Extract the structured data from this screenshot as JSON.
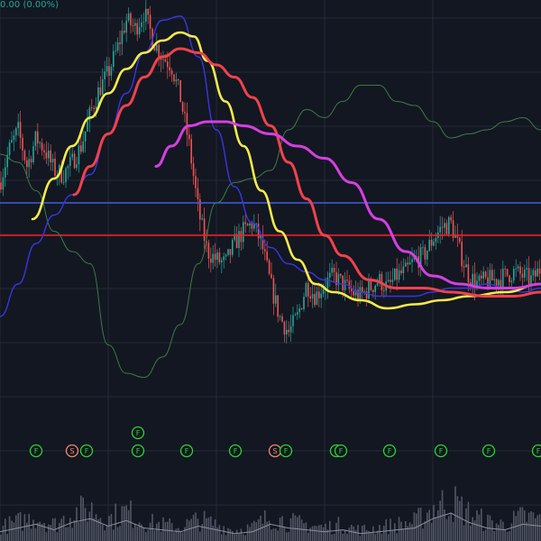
{
  "header": {
    "change_readout": "0.00 (0.00%)"
  },
  "colors": {
    "background": "#131722",
    "grid": "#242a38",
    "candle_up": "#26a69a",
    "candle_down": "#ef5350",
    "ma_fast_green": "#3d7a45",
    "ma_blue": "#3a36e0",
    "ma_yellow": "#f5eb4a",
    "ma_red": "#f0424b",
    "ma_magenta": "#d63fe0",
    "level_blue": "#3f5fe0",
    "level_red": "#ff1a1a",
    "marker_f": "#2bd52b",
    "marker_s": "#f4876b",
    "volume": "#5c6270"
  },
  "chart_data": {
    "type": "candlestick",
    "grid": true,
    "series": [
      {
        "name": "",
        "kind": "moving-average",
        "color": "#3d7a45",
        "x": [
          0,
          20,
          40,
          60,
          80,
          100,
          120,
          140,
          160,
          180,
          200,
          220,
          240,
          260,
          280,
          300,
          320,
          340,
          360,
          380,
          400,
          420,
          440,
          460,
          480,
          500,
          520,
          540,
          560,
          580,
          600
        ],
        "y": [
          0.62,
          0.6,
          0.53,
          0.43,
          0.38,
          0.35,
          0.15,
          0.08,
          0.07,
          0.12,
          0.2,
          0.35,
          0.5,
          0.55,
          0.56,
          0.58,
          0.68,
          0.73,
          0.71,
          0.75,
          0.79,
          0.79,
          0.75,
          0.74,
          0.7,
          0.66,
          0.67,
          0.68,
          0.7,
          0.71,
          0.68
        ]
      },
      {
        "name": "",
        "kind": "moving-average",
        "color": "#3a36e0",
        "x": [
          0,
          20,
          40,
          60,
          80,
          100,
          120,
          140,
          160,
          180,
          200,
          220,
          240,
          260,
          280,
          300,
          320,
          340,
          360,
          380,
          400,
          420,
          440,
          460,
          480,
          500,
          520,
          540,
          560,
          580,
          600
        ],
        "y": [
          0.22,
          0.3,
          0.4,
          0.47,
          0.52,
          0.57,
          0.67,
          0.77,
          0.87,
          0.95,
          0.96,
          0.86,
          0.68,
          0.54,
          0.45,
          0.39,
          0.35,
          0.33,
          0.31,
          0.3,
          0.28,
          0.27,
          0.27,
          0.27,
          0.28,
          0.29,
          0.29,
          0.3,
          0.29,
          0.28,
          0.29
        ]
      },
      {
        "name": "",
        "kind": "moving-average",
        "color": "#f5eb4a",
        "x": [
          36,
          60,
          80,
          100,
          120,
          140,
          160,
          180,
          200,
          215,
          230,
          250,
          270,
          290,
          310,
          330,
          350,
          370,
          400,
          430,
          460,
          490,
          520,
          560,
          600
        ],
        "y": [
          0.46,
          0.56,
          0.64,
          0.71,
          0.77,
          0.83,
          0.87,
          0.9,
          0.92,
          0.91,
          0.85,
          0.75,
          0.64,
          0.53,
          0.43,
          0.36,
          0.3,
          0.28,
          0.26,
          0.24,
          0.25,
          0.26,
          0.27,
          0.28,
          0.3
        ]
      },
      {
        "name": "",
        "kind": "moving-average",
        "color": "#f0424b",
        "x": [
          82,
          100,
          120,
          140,
          160,
          180,
          200,
          220,
          240,
          260,
          280,
          300,
          320,
          340,
          360,
          380,
          410,
          440,
          470,
          500,
          540,
          570,
          600
        ],
        "y": [
          0.52,
          0.59,
          0.67,
          0.74,
          0.81,
          0.86,
          0.88,
          0.87,
          0.84,
          0.81,
          0.76,
          0.69,
          0.6,
          0.51,
          0.42,
          0.37,
          0.31,
          0.29,
          0.29,
          0.28,
          0.27,
          0.27,
          0.28
        ]
      },
      {
        "name": "",
        "kind": "moving-average",
        "color": "#d63fe0",
        "x": [
          173,
          190,
          210,
          230,
          250,
          270,
          300,
          330,
          360,
          390,
          420,
          450,
          480,
          510,
          540,
          570,
          600
        ],
        "y": [
          0.59,
          0.64,
          0.69,
          0.7,
          0.7,
          0.69,
          0.67,
          0.64,
          0.61,
          0.55,
          0.46,
          0.38,
          0.32,
          0.3,
          0.29,
          0.29,
          0.3
        ]
      }
    ],
    "horizontal_levels": [
      {
        "name": "",
        "y": 0.5,
        "color": "#3f5fe0"
      },
      {
        "name": "",
        "y": 0.42,
        "color": "#ff1a1a"
      }
    ],
    "price_path": {
      "x": [
        0,
        10,
        20,
        30,
        40,
        50,
        60,
        70,
        80,
        90,
        100,
        110,
        120,
        130,
        140,
        150,
        160,
        170,
        180,
        190,
        200,
        210,
        220,
        230,
        240,
        250,
        260,
        270,
        280,
        290,
        300,
        310,
        320,
        330,
        340,
        350,
        360,
        370,
        380,
        390,
        400,
        410,
        420,
        430,
        440,
        450,
        460,
        470,
        480,
        490,
        500,
        510,
        520,
        530,
        540,
        550,
        560,
        570,
        580,
        590,
        600
      ],
      "y": [
        0.55,
        0.63,
        0.68,
        0.59,
        0.66,
        0.63,
        0.58,
        0.57,
        0.6,
        0.64,
        0.72,
        0.78,
        0.82,
        0.88,
        0.95,
        0.93,
        0.97,
        0.9,
        0.86,
        0.84,
        0.76,
        0.64,
        0.48,
        0.38,
        0.36,
        0.35,
        0.4,
        0.43,
        0.45,
        0.4,
        0.3,
        0.22,
        0.18,
        0.22,
        0.3,
        0.27,
        0.3,
        0.32,
        0.3,
        0.28,
        0.27,
        0.29,
        0.31,
        0.29,
        0.32,
        0.33,
        0.36,
        0.37,
        0.41,
        0.44,
        0.45,
        0.38,
        0.32,
        0.3,
        0.31,
        0.31,
        0.32,
        0.33,
        0.32,
        0.31,
        0.34
      ]
    },
    "events": [
      {
        "label": "F",
        "kind": "F",
        "x": 40,
        "row": 0
      },
      {
        "label": "S",
        "kind": "S",
        "x": 80,
        "row": 0
      },
      {
        "label": "F",
        "kind": "F",
        "x": 96,
        "row": 0
      },
      {
        "label": "F",
        "kind": "F",
        "x": 153,
        "row": 0
      },
      {
        "label": "F",
        "kind": "F",
        "x": 153,
        "row": 1
      },
      {
        "label": "F",
        "kind": "F",
        "x": 207,
        "row": 0
      },
      {
        "label": "F",
        "kind": "F",
        "x": 261,
        "row": 0
      },
      {
        "label": "S",
        "kind": "S",
        "x": 305,
        "row": 0
      },
      {
        "label": "F",
        "kind": "F",
        "x": 317,
        "row": 0
      },
      {
        "label": "F",
        "kind": "F",
        "x": 373,
        "row": 0
      },
      {
        "label": "F",
        "kind": "F",
        "x": 378,
        "row": 0
      },
      {
        "label": "F",
        "kind": "F",
        "x": 432,
        "row": 0
      },
      {
        "label": "F",
        "kind": "F",
        "x": 489,
        "row": 0
      },
      {
        "label": "F",
        "kind": "F",
        "x": 542,
        "row": 0
      },
      {
        "label": "F",
        "kind": "F",
        "x": 597,
        "row": 0
      }
    ],
    "volume_path": {
      "x": [
        0,
        20,
        40,
        60,
        80,
        100,
        120,
        140,
        160,
        180,
        200,
        220,
        240,
        260,
        280,
        300,
        320,
        340,
        360,
        380,
        400,
        420,
        440,
        460,
        480,
        500,
        520,
        540,
        560,
        580,
        600
      ],
      "v": [
        0.25,
        0.35,
        0.45,
        0.3,
        0.5,
        0.6,
        0.4,
        0.55,
        0.35,
        0.3,
        0.25,
        0.4,
        0.3,
        0.2,
        0.25,
        0.45,
        0.35,
        0.3,
        0.25,
        0.3,
        0.2,
        0.25,
        0.3,
        0.35,
        0.6,
        0.75,
        0.5,
        0.35,
        0.3,
        0.45,
        0.4
      ]
    }
  }
}
